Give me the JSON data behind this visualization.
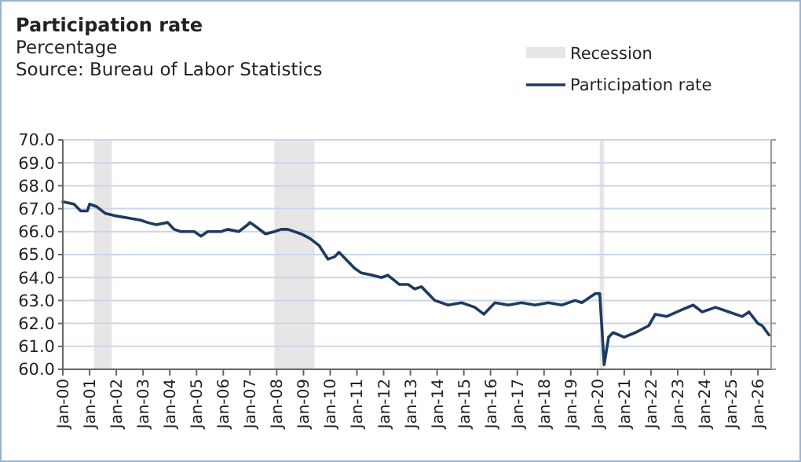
{
  "chart_data": {
    "type": "line",
    "title": "Participation rate",
    "subtitle": "Percentage",
    "annotations": [
      "Source: Bureau of Labor Statistics"
    ],
    "x": [
      "2000-01",
      "2000-06",
      "2000-09",
      "2000-12",
      "2001-01",
      "2001-04",
      "2001-08",
      "2001-12",
      "2002-06",
      "2002-12",
      "2003-03",
      "2003-07",
      "2003-12",
      "2004-03",
      "2004-06",
      "2004-12",
      "2005-03",
      "2005-06",
      "2005-12",
      "2006-03",
      "2006-08",
      "2006-12",
      "2007-01",
      "2007-04",
      "2007-08",
      "2007-12",
      "2008-03",
      "2008-06",
      "2008-12",
      "2009-04",
      "2009-08",
      "2009-12",
      "2010-03",
      "2010-05",
      "2010-09",
      "2010-12",
      "2011-03",
      "2011-08",
      "2011-12",
      "2012-03",
      "2012-08",
      "2012-12",
      "2013-03",
      "2013-06",
      "2013-12",
      "2014-06",
      "2014-12",
      "2015-06",
      "2015-10",
      "2016-03",
      "2016-09",
      "2017-03",
      "2017-09",
      "2018-03",
      "2018-09",
      "2019-03",
      "2019-06",
      "2019-12",
      "2020-02",
      "2020-04",
      "2020-06",
      "2020-08",
      "2021-01",
      "2021-06",
      "2021-12",
      "2022-03",
      "2022-08",
      "2023-03",
      "2023-08",
      "2023-12",
      "2024-06",
      "2024-12",
      "2025-06",
      "2025-09",
      "2026-01",
      "2026-03",
      "2026-06"
    ],
    "series": [
      {
        "name": "Participation rate",
        "color": "#1f3a5f",
        "values": [
          67.3,
          67.2,
          66.9,
          66.9,
          67.2,
          67.1,
          66.8,
          66.7,
          66.6,
          66.5,
          66.4,
          66.3,
          66.4,
          66.1,
          66.0,
          66.0,
          65.8,
          66.0,
          66.0,
          66.1,
          66.0,
          66.3,
          66.4,
          66.2,
          65.9,
          66.0,
          66.1,
          66.1,
          65.9,
          65.7,
          65.4,
          64.8,
          64.9,
          65.1,
          64.7,
          64.4,
          64.2,
          64.1,
          64.0,
          64.1,
          63.7,
          63.7,
          63.5,
          63.6,
          63.0,
          62.8,
          62.9,
          62.7,
          62.4,
          62.9,
          62.8,
          62.9,
          62.8,
          62.9,
          62.8,
          63.0,
          62.9,
          63.3,
          63.3,
          60.2,
          61.4,
          61.6,
          61.4,
          61.6,
          61.9,
          62.4,
          62.3,
          62.6,
          62.8,
          62.5,
          62.7,
          62.5,
          62.3,
          62.5,
          62.0,
          61.9,
          61.5
        ]
      }
    ],
    "bands": [
      {
        "axis": "x",
        "from": "2001-03",
        "to": "2001-11",
        "label": "Recession",
        "color": "#e6e6e6"
      },
      {
        "axis": "x",
        "from": "2007-12",
        "to": "2009-06",
        "color": "#e6e6e6"
      },
      {
        "axis": "x",
        "from": "2020-02",
        "to": "2020-04",
        "color": "#e6e6e6"
      }
    ],
    "xlim": [
      "2000-01",
      "2026-07"
    ],
    "xticks": [
      {
        "value": "2000-01",
        "label": "Jan-00"
      },
      {
        "value": "2001-01",
        "label": "Jan-01"
      },
      {
        "value": "2002-01",
        "label": "Jan-02"
      },
      {
        "value": "2003-01",
        "label": "Jan-03"
      },
      {
        "value": "2004-01",
        "label": "Jan-04"
      },
      {
        "value": "2005-01",
        "label": "Jan-05"
      },
      {
        "value": "2006-01",
        "label": "Jan-06"
      },
      {
        "value": "2007-01",
        "label": "Jan-07"
      },
      {
        "value": "2008-01",
        "label": "Jan-08"
      },
      {
        "value": "2009-01",
        "label": "Jan-09"
      },
      {
        "value": "2010-01",
        "label": "Jan-10"
      },
      {
        "value": "2011-01",
        "label": "Jan-11"
      },
      {
        "value": "2012-01",
        "label": "Jan-12"
      },
      {
        "value": "2013-01",
        "label": "Jan-13"
      },
      {
        "value": "2014-01",
        "label": "Jan-14"
      },
      {
        "value": "2015-01",
        "label": "Jan-15"
      },
      {
        "value": "2016-01",
        "label": "Jan-16"
      },
      {
        "value": "2017-01",
        "label": "Jan-17"
      },
      {
        "value": "2018-01",
        "label": "Jan-18"
      },
      {
        "value": "2019-01",
        "label": "Jan-19"
      },
      {
        "value": "2020-01",
        "label": "Jan-20"
      },
      {
        "value": "2021-01",
        "label": "Jan-21"
      },
      {
        "value": "2022-01",
        "label": "Jan-22"
      },
      {
        "value": "2023-01",
        "label": "Jan-23"
      },
      {
        "value": "2024-01",
        "label": "Jan-24"
      },
      {
        "value": "2025-01",
        "label": "Jan-25"
      },
      {
        "value": "2026-01",
        "label": "Jan-26"
      }
    ],
    "ylim": [
      60,
      70
    ],
    "yticks": [
      {
        "value": 60,
        "label": "60.0"
      },
      {
        "value": 61,
        "label": "61.0"
      },
      {
        "value": 62,
        "label": "62.0"
      },
      {
        "value": 63,
        "label": "63.0"
      },
      {
        "value": 64,
        "label": "64.0"
      },
      {
        "value": 65,
        "label": "65.0"
      },
      {
        "value": 66,
        "label": "66.0"
      },
      {
        "value": 67,
        "label": "67.0"
      },
      {
        "value": 68,
        "label": "68.0"
      },
      {
        "value": 69,
        "label": "69.0"
      },
      {
        "value": 70,
        "label": "70.0"
      }
    ],
    "grid": "y",
    "legend": "top right",
    "line_style": "solid",
    "marker": "none"
  }
}
